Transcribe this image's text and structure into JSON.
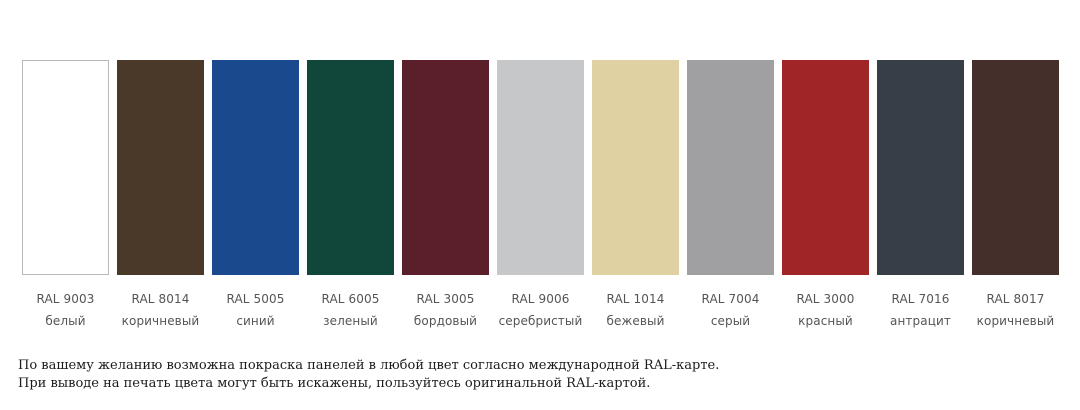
{
  "swatches": [
    {
      "code": "RAL 9003",
      "name": "белый",
      "color": "#ffffff"
    },
    {
      "code": "RAL 8014",
      "name": "коричневый",
      "color": "#4a3928"
    },
    {
      "code": "RAL 5005",
      "name": "синий",
      "color": "#1a4a8d"
    },
    {
      "code": "RAL 6005",
      "name": "зеленый",
      "color": "#10473a"
    },
    {
      "code": "RAL 3005",
      "name": "бордовый",
      "color": "#5a1f2a"
    },
    {
      "code": "RAL 9006",
      "name": "серебристый",
      "color": "#c6c7c9"
    },
    {
      "code": "RAL 1014",
      "name": "бежевый",
      "color": "#dfd1a1"
    },
    {
      "code": "RAL 7004",
      "name": "серый",
      "color": "#a0a0a3"
    },
    {
      "code": "RAL 3000",
      "name": "красный",
      "color": "#a02526"
    },
    {
      "code": "RAL 7016",
      "name": "антрацит",
      "color": "#383e48"
    },
    {
      "code": "RAL 8017",
      "name": "коричневый",
      "color": "#452f2a"
    }
  ],
  "notes": {
    "line1": "По вашему желанию возможна покраска панелей в любой цвет согласно международной RAL-карте.",
    "line2": "При выводе на печать цвета могут быть искажены, пользуйтесь оригинальной RAL-картой."
  }
}
